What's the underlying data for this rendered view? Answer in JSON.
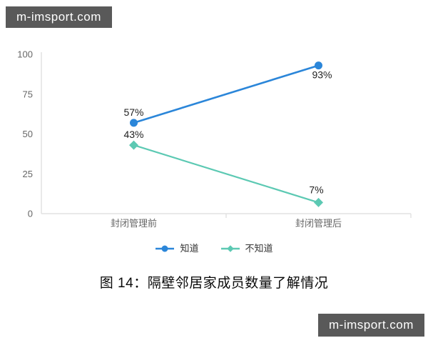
{
  "watermark": {
    "text": "m-imsport.com"
  },
  "caption": "图 14：隔壁邻居家成员数量了解情况",
  "chart_data": {
    "type": "line",
    "categories": [
      "封闭管理前",
      "封闭管理后"
    ],
    "series": [
      {
        "name": "知道",
        "values": [
          57,
          93
        ],
        "labels": [
          "57%",
          "93%"
        ],
        "color": "#2b86d9",
        "marker": "circle"
      },
      {
        "name": "不知道",
        "values": [
          43,
          7
        ],
        "labels": [
          "43%",
          "7%"
        ],
        "color": "#5cc9b3",
        "marker": "diamond"
      }
    ],
    "title": "",
    "xlabel": "",
    "ylabel": "",
    "ylim": [
      0,
      100
    ],
    "yticks": [
      0,
      25,
      50,
      75,
      100
    ],
    "grid": false,
    "legend_position": "bottom",
    "axis_color": "#e2e2e2",
    "tick_label_color": "#666666",
    "data_label_color": "#1f1f1f"
  }
}
